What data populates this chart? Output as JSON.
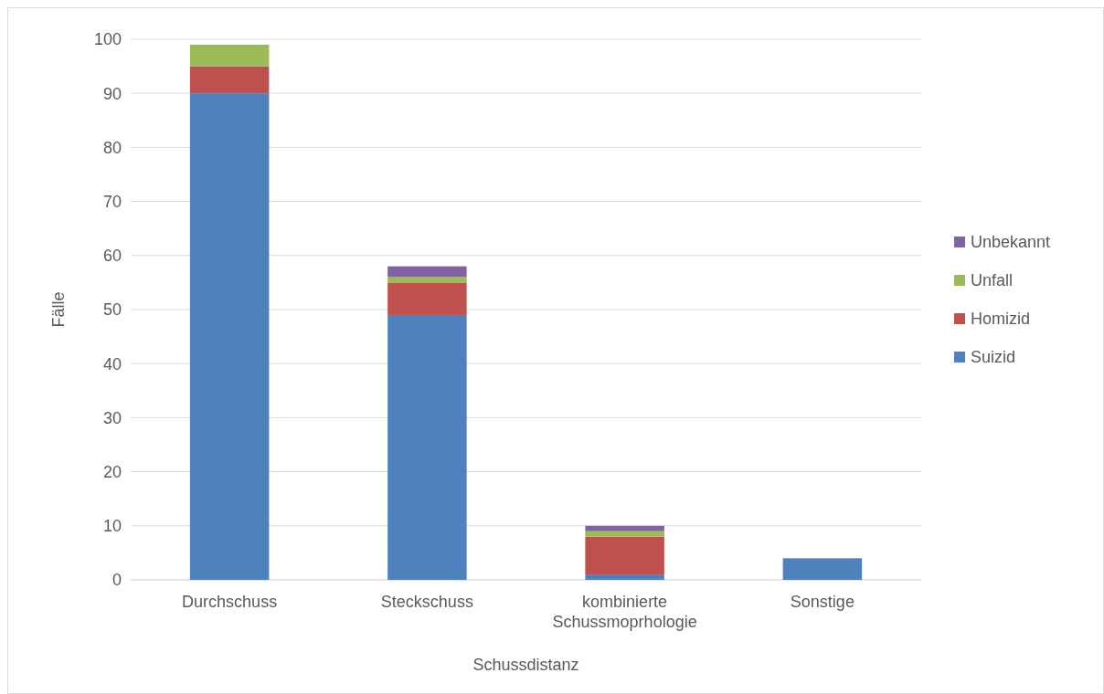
{
  "chart_data": {
    "type": "bar",
    "stacked": true,
    "xlabel": "Schussdistanz",
    "ylabel": "Fälle",
    "categories": [
      "Durchschuss",
      "Steckschuss",
      "kombinierte Schussmoprhologie",
      "Sonstige"
    ],
    "series": [
      {
        "name": "Suizid",
        "color": "#4f81bd",
        "values": [
          90,
          49,
          1,
          4
        ]
      },
      {
        "name": "Homizid",
        "color": "#c0504d",
        "values": [
          5,
          6,
          7,
          0
        ]
      },
      {
        "name": "Unfall",
        "color": "#9bbb59",
        "values": [
          4,
          1,
          1,
          0
        ]
      },
      {
        "name": "Unbekannt",
        "color": "#8064a2",
        "values": [
          0,
          2,
          1,
          0
        ]
      }
    ],
    "ylim": [
      0,
      100
    ],
    "yticks": [
      0,
      10,
      20,
      30,
      40,
      50,
      60,
      70,
      80,
      90,
      100
    ],
    "grid": "y",
    "legend": "right"
  }
}
